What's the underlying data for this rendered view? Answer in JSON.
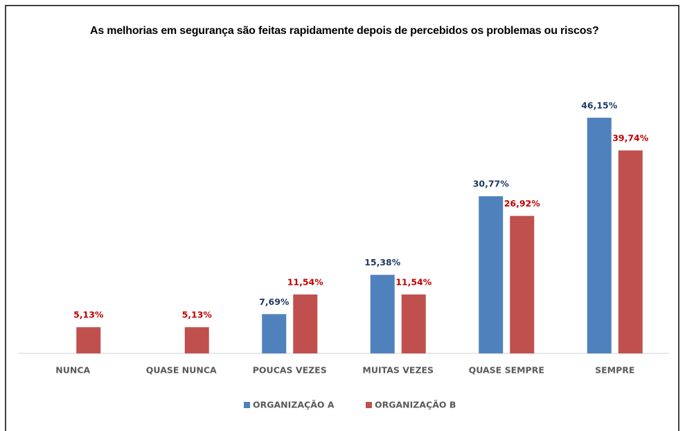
{
  "chart_data": {
    "type": "bar",
    "title": "As melhorias em segurança são feitas rapidamente depois de percebidos os problemas ou riscos?",
    "categories": [
      "NUNCA",
      "QUASE NUNCA",
      "POUCAS VEZES",
      "MUITAS VEZES",
      "QUASE SEMPRE",
      "SEMPRE"
    ],
    "series": [
      {
        "name": "ORGANIZAÇÃO A",
        "color": "#4f81bd",
        "label_color": "#1f3864",
        "values": [
          null,
          null,
          7.69,
          15.38,
          30.77,
          46.15
        ],
        "value_labels": [
          null,
          null,
          "7,69%",
          "15,38%",
          "30,77%",
          "46,15%"
        ]
      },
      {
        "name": "ORGANIZAÇÃO B",
        "color": "#c0504d",
        "label_color": "#c00000",
        "values": [
          5.13,
          5.13,
          11.54,
          11.54,
          26.92,
          39.74
        ],
        "value_labels": [
          "5,13%",
          "5,13%",
          "11,54%",
          "11,54%",
          "26,92%",
          "39,74%"
        ]
      }
    ],
    "legend": "bottom"
  }
}
